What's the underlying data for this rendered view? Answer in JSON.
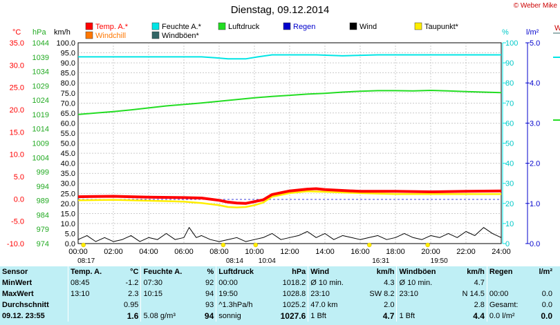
{
  "title": "Dienstag, 09.12.2014",
  "copyright": "© Weber Mike",
  "legend": [
    {
      "label": "Temp. A.*",
      "color": "#ff0000"
    },
    {
      "label": "Feuchte A.*",
      "color": "#00e5e5"
    },
    {
      "label": "Luftdruck",
      "color": "#22dd22"
    },
    {
      "label": "Regen",
      "color": "#0000cc"
    },
    {
      "label": "Wind",
      "color": "#000000"
    },
    {
      "label": "Taupunkt*",
      "color": "#ffee00"
    },
    {
      "label": "Windchill",
      "color": "#ff7700"
    },
    {
      "label": "Windböen*",
      "color": "#336666"
    }
  ],
  "axis_units": {
    "temp": "°C",
    "pressure": "hPa",
    "wind": "km/h",
    "humidity": "%",
    "rain": "l/m²",
    "right_edge": "W"
  },
  "axis_ticks": {
    "temp": [
      "35.0",
      "30.0",
      "25.0",
      "20.0",
      "15.0",
      "10.0",
      "5.0",
      "0.0",
      "-5.0",
      "-10.0"
    ],
    "pressure": [
      "1044",
      "1039",
      "1034",
      "1029",
      "1024",
      "1019",
      "1014",
      "1009",
      "1004",
      "999",
      "994",
      "989",
      "984",
      "979",
      "974"
    ],
    "wind": [
      "100.0",
      "95.0",
      "90.0",
      "85.0",
      "80.0",
      "75.0",
      "70.0",
      "65.0",
      "60.0",
      "55.0",
      "50.0",
      "45.0",
      "40.0",
      "35.0",
      "30.0",
      "25.0",
      "20.0",
      "15.0",
      "10.0",
      "5.0",
      "0.0"
    ],
    "humidity": [
      "100",
      "90",
      "80",
      "70",
      "60",
      "50",
      "40",
      "30",
      "20",
      "10",
      "0"
    ],
    "rain": [
      "5.0",
      "4.0",
      "3.0",
      "2.0",
      "1.0",
      "0.0"
    ]
  },
  "x_ticks": [
    "00:00",
    "02:00",
    "04:00",
    "06:00",
    "08:00",
    "10:00",
    "12:00",
    "14:00",
    "16:00",
    "18:00",
    "20:00",
    "22:00",
    "24:00"
  ],
  "sun_moon": [
    {
      "label": "08:17",
      "hour": 0.3
    },
    {
      "label": "08:14",
      "hour": 8.23
    },
    {
      "label": "10:04",
      "hour": 10.07
    },
    {
      "label": "16:31",
      "hour": 16.52
    },
    {
      "label": "19:50",
      "hour": 19.83
    }
  ],
  "chart_data": {
    "type": "line",
    "title": "Dienstag, 09.12.2014",
    "x_unit": "hour",
    "xlim": [
      0,
      24
    ],
    "series": [
      {
        "name": "Feuchte A.*",
        "color": "#00e5e5",
        "axis": "humidity",
        "ylim": [
          0,
          100
        ],
        "x": [
          0,
          2,
          4,
          6,
          7,
          7.8,
          8.5,
          9.5,
          10.2,
          11,
          12,
          13.5,
          15,
          17,
          19,
          21,
          23,
          24
        ],
        "y": [
          93,
          93,
          93,
          93,
          93,
          92.5,
          92,
          92,
          93,
          94,
          94,
          94,
          93.5,
          94,
          94,
          94,
          94,
          94
        ]
      },
      {
        "name": "Luftdruck",
        "color": "#22dd22",
        "axis": "pressure",
        "ylim": [
          974,
          1044
        ],
        "x": [
          0,
          1,
          2,
          3,
          4,
          5,
          6,
          7,
          8,
          9,
          10,
          11,
          12,
          13,
          14,
          15,
          16,
          17,
          18,
          19,
          20,
          21,
          22,
          23,
          24
        ],
        "y": [
          1019,
          1019.5,
          1020,
          1020.6,
          1021.3,
          1022,
          1022.5,
          1023,
          1023.6,
          1024.2,
          1024.8,
          1025.3,
          1025.7,
          1026.1,
          1026.4,
          1026.8,
          1027.1,
          1027.3,
          1027.3,
          1027.2,
          1027.4,
          1027.2,
          1027,
          1026.8,
          1026.6
        ]
      },
      {
        "name": "Taupunkt*",
        "color": "#ffee00",
        "axis": "temp",
        "ylim": [
          -10,
          35
        ],
        "x": [
          0,
          2,
          4,
          6,
          7,
          8,
          8.5,
          9,
          9.5,
          10,
          10.5,
          11,
          12,
          13,
          14,
          16,
          18,
          20,
          22,
          24
        ],
        "y": [
          -0.3,
          -0.2,
          -0.4,
          -0.6,
          -0.9,
          -1.4,
          -1.8,
          -1.9,
          -1.8,
          -1.4,
          -0.8,
          0.5,
          1.3,
          1.7,
          1.6,
          1.3,
          1.1,
          1.1,
          1.1,
          1.1
        ]
      },
      {
        "name": "Temp. A.*",
        "color": "#ff0000",
        "axis": "temp",
        "ylim": [
          -10,
          35
        ],
        "x": [
          0,
          2,
          4,
          6,
          7,
          8,
          8.5,
          9,
          9.5,
          10,
          10.5,
          11,
          12,
          13,
          13.5,
          14,
          16,
          18,
          20,
          22,
          24
        ],
        "y": [
          0.5,
          0.6,
          0.4,
          0.3,
          0.2,
          -0.3,
          -0.7,
          -0.9,
          -1.0,
          -0.6,
          -0.2,
          1.0,
          1.8,
          2.2,
          2.3,
          2.1,
          1.7,
          1.7,
          1.6,
          1.7,
          1.8
        ]
      },
      {
        "name": "Wind",
        "color": "#000000",
        "axis": "wind",
        "ylim": [
          0,
          100
        ],
        "x": [
          0,
          0.5,
          1,
          1.5,
          2,
          2.5,
          3,
          3.5,
          4,
          4.5,
          5,
          5.5,
          6,
          6.3,
          6.7,
          7,
          7.5,
          8,
          8.5,
          9,
          9.5,
          10,
          10.5,
          11,
          11.5,
          12,
          12.5,
          13,
          13.5,
          14,
          14.5,
          15,
          15.5,
          16,
          16.5,
          17,
          17.5,
          18,
          18.5,
          19,
          19.5,
          20,
          20.5,
          21,
          21.5,
          22,
          22.5,
          23,
          23.5,
          24
        ],
        "y": [
          2,
          4,
          1,
          3,
          1,
          2,
          4,
          1,
          3,
          2,
          5,
          2,
          3,
          8,
          3,
          4,
          2,
          1,
          2,
          3,
          1,
          2,
          3,
          5,
          2,
          3,
          4,
          6,
          3,
          5,
          2,
          4,
          3,
          2,
          3,
          4,
          2,
          3,
          5,
          3,
          2,
          4,
          3,
          5,
          3,
          6,
          4,
          8,
          5,
          3
        ]
      }
    ]
  },
  "stats": {
    "headers": [
      "Sensor",
      "Temp. A.",
      "°C",
      "Feuchte A.",
      "%",
      "Luftdruck",
      "hPa",
      "Wind",
      "km/h",
      "Windböen",
      "km/h",
      "Regen",
      "l/m²"
    ],
    "rows": [
      {
        "label": "MinWert",
        "cells": [
          "08:45",
          "-1.2",
          "07:30",
          "92",
          "00:00",
          "1018.2",
          "Ø 10 min.",
          "4.3",
          "Ø 10 min.",
          "4.7",
          "",
          ""
        ]
      },
      {
        "label": "MaxWert",
        "cells": [
          "13:10",
          "2.3",
          "10:15",
          "94",
          "19:50",
          "1028.8",
          "23:10",
          "SW 8.2",
          "23:10",
          "N 14.5",
          "00:00",
          "0.0"
        ]
      },
      {
        "label": "Durchschnitt",
        "cells": [
          "",
          "0.95",
          "",
          "93",
          "^1.3hPa/h",
          "1025.2",
          "47.0 km",
          "2.0",
          "",
          "2.8",
          "Gesamt:",
          "0.0"
        ]
      },
      {
        "label": "09.12. 23:55",
        "cells": [
          "",
          "1.6",
          "5.08 g/m³",
          "94",
          "sonnig",
          "1027.6",
          "1 Bft",
          "4.7",
          "1 Bft",
          "4.4",
          "0.0 l/m²",
          "0.0"
        ]
      }
    ]
  }
}
